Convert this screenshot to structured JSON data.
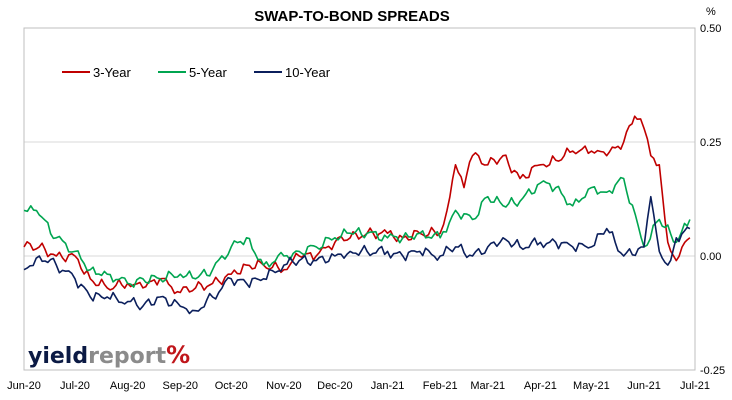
{
  "chart_data": {
    "type": "line",
    "title": "SWAP-TO-BOND SPREADS",
    "y_unit_label": "%",
    "ylim": [
      -0.25,
      0.5
    ],
    "y_ticks": [
      "0.50",
      "0.25",
      "0.00",
      "-0.25"
    ],
    "y_tick_values": [
      0.5,
      0.25,
      0.0,
      -0.25
    ],
    "x_ticks": [
      "Jun-20",
      "Jul-20",
      "Aug-20",
      "Sep-20",
      "Oct-20",
      "Nov-20",
      "Dec-20",
      "Jan-21",
      "Feb-21",
      "Mar-21",
      "Apr-21",
      "May-21",
      "Jun-21",
      "Jul-21"
    ],
    "grid": "horizontal",
    "legend_position": "top-left",
    "series": [
      {
        "name": "3-Year",
        "color": "#c00000",
        "x": [
          "2020-06-01",
          "2020-06-10",
          "2020-06-20",
          "2020-07-01",
          "2020-07-10",
          "2020-07-20",
          "2020-08-01",
          "2020-08-10",
          "2020-08-20",
          "2020-09-01",
          "2020-09-10",
          "2020-09-20",
          "2020-10-01",
          "2020-10-10",
          "2020-10-20",
          "2020-11-01",
          "2020-11-10",
          "2020-11-20",
          "2020-12-01",
          "2020-12-10",
          "2020-12-20",
          "2021-01-01",
          "2021-01-10",
          "2021-01-20",
          "2021-02-01",
          "2021-02-05",
          "2021-02-10",
          "2021-02-15",
          "2021-02-20",
          "2021-03-01",
          "2021-03-10",
          "2021-03-20",
          "2021-04-01",
          "2021-04-10",
          "2021-04-20",
          "2021-05-01",
          "2021-05-10",
          "2021-05-20",
          "2021-05-25",
          "2021-05-28",
          "2021-06-01",
          "2021-06-05",
          "2021-06-10",
          "2021-06-15",
          "2021-06-20",
          "2021-06-25",
          "2021-06-28"
        ],
        "values": [
          0.02,
          0.02,
          0.0,
          0.0,
          -0.05,
          -0.07,
          -0.06,
          -0.07,
          -0.05,
          -0.08,
          -0.07,
          -0.06,
          -0.04,
          -0.02,
          -0.02,
          -0.03,
          0.0,
          0.0,
          0.03,
          0.04,
          0.05,
          0.05,
          0.04,
          0.05,
          0.05,
          0.1,
          0.2,
          0.15,
          0.22,
          0.2,
          0.22,
          0.17,
          0.2,
          0.21,
          0.23,
          0.23,
          0.22,
          0.25,
          0.29,
          0.3,
          0.28,
          0.22,
          0.2,
          0.03,
          -0.01,
          0.03,
          0.04
        ]
      },
      {
        "name": "5-Year",
        "color": "#00a550",
        "x": [
          "2020-06-01",
          "2020-06-05",
          "2020-06-10",
          "2020-06-20",
          "2020-07-01",
          "2020-07-10",
          "2020-07-20",
          "2020-08-01",
          "2020-08-10",
          "2020-08-20",
          "2020-09-01",
          "2020-09-10",
          "2020-09-20",
          "2020-10-01",
          "2020-10-10",
          "2020-10-20",
          "2020-11-01",
          "2020-11-10",
          "2020-11-20",
          "2020-12-01",
          "2020-12-10",
          "2020-12-20",
          "2021-01-01",
          "2021-01-10",
          "2021-01-20",
          "2021-02-01",
          "2021-02-10",
          "2021-02-20",
          "2021-03-01",
          "2021-03-10",
          "2021-03-20",
          "2021-04-01",
          "2021-04-10",
          "2021-04-20",
          "2021-05-01",
          "2021-05-10",
          "2021-05-20",
          "2021-06-01",
          "2021-06-10",
          "2021-06-20",
          "2021-06-28"
        ],
        "values": [
          0.1,
          0.11,
          0.09,
          0.04,
          0.01,
          -0.03,
          -0.04,
          -0.06,
          -0.05,
          -0.05,
          -0.04,
          -0.05,
          -0.03,
          0.02,
          0.04,
          -0.02,
          0.0,
          0.01,
          0.02,
          0.04,
          0.05,
          0.05,
          0.04,
          0.04,
          0.05,
          0.04,
          0.1,
          0.08,
          0.13,
          0.11,
          0.12,
          0.16,
          0.15,
          0.11,
          0.15,
          0.14,
          0.17,
          0.02,
          0.08,
          0.03,
          0.08
        ]
      },
      {
        "name": "10-Year",
        "color": "#0b1f5c",
        "x": [
          "2020-06-01",
          "2020-06-10",
          "2020-06-20",
          "2020-07-01",
          "2020-07-10",
          "2020-07-20",
          "2020-08-01",
          "2020-08-10",
          "2020-08-20",
          "2020-09-01",
          "2020-09-10",
          "2020-09-20",
          "2020-10-01",
          "2020-10-10",
          "2020-10-20",
          "2020-11-01",
          "2020-11-10",
          "2020-11-20",
          "2020-12-01",
          "2020-12-10",
          "2020-12-20",
          "2021-01-01",
          "2021-01-10",
          "2021-01-20",
          "2021-02-01",
          "2021-02-10",
          "2021-02-20",
          "2021-03-01",
          "2021-03-10",
          "2021-03-20",
          "2021-04-01",
          "2021-04-10",
          "2021-04-20",
          "2021-05-01",
          "2021-05-10",
          "2021-05-20",
          "2021-06-01",
          "2021-06-05",
          "2021-06-10",
          "2021-06-15",
          "2021-06-20",
          "2021-06-28"
        ],
        "values": [
          -0.03,
          0.0,
          -0.02,
          -0.05,
          -0.09,
          -0.09,
          -0.1,
          -0.11,
          -0.09,
          -0.11,
          -0.12,
          -0.09,
          -0.05,
          -0.06,
          -0.05,
          -0.02,
          -0.01,
          -0.01,
          0.0,
          0.01,
          0.01,
          0.01,
          0.0,
          0.01,
          0.0,
          0.02,
          0.0,
          0.02,
          0.04,
          0.02,
          0.03,
          0.03,
          0.02,
          0.02,
          0.06,
          0.0,
          0.02,
          0.13,
          0.01,
          -0.02,
          0.04,
          0.06
        ]
      }
    ]
  },
  "logo": {
    "part1": "yield",
    "part2": "report",
    "part3": "%"
  }
}
